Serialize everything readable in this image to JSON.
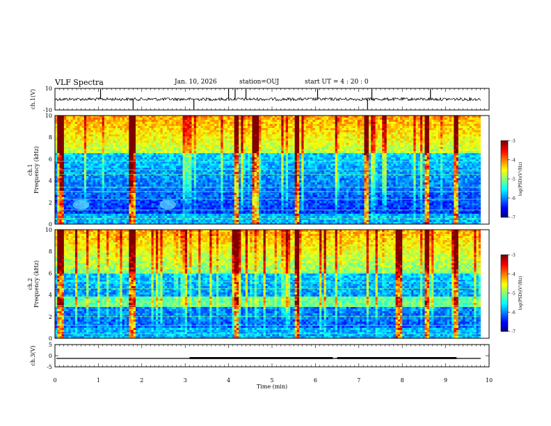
{
  "header": {
    "title": "VLF Spectra",
    "date": "Jan. 10, 2026",
    "station": "station=OUJ",
    "start": "start UT =  4 : 20 : 0"
  },
  "colors": {
    "colormap": [
      "#00007f",
      "#0000ff",
      "#007fff",
      "#00ffff",
      "#7fff7f",
      "#ffff00",
      "#ff7f00",
      "#ff0000",
      "#7f0000"
    ]
  },
  "chart_data": [
    {
      "type": "line",
      "name": "ch1-waveform",
      "ylabel": "ch.1(V)",
      "ylim": [
        -10,
        10
      ],
      "yticks": [
        "10",
        "-10"
      ],
      "xlim": [
        0,
        10
      ],
      "baseline": 0,
      "spikes_min": [
        1.05,
        1.8,
        3.2,
        4.0,
        4.15,
        4.4,
        6.05,
        7.2,
        7.3,
        8.65
      ]
    },
    {
      "type": "heatmap",
      "name": "ch1-spectrogram",
      "ylabel": "ch.1\nFrequency (kHz)",
      "ylim": [
        0,
        10
      ],
      "yticks": [
        "0",
        "2",
        "4",
        "6",
        "8",
        "10"
      ],
      "xlim": [
        0,
        10
      ],
      "colorbar": {
        "label": "log(PSD)(V²/Hz)",
        "range": [
          -7,
          -3
        ],
        "ticks": [
          "-3",
          "-4",
          "-5",
          "-6",
          "-7"
        ]
      },
      "strong_events_min": [
        0.1,
        1.75,
        4.15,
        4.6,
        5.55,
        7.15,
        8.55,
        9.2
      ],
      "blob_regions_min": [
        0.6,
        2.6
      ]
    },
    {
      "type": "heatmap",
      "name": "ch2-spectrogram",
      "ylabel": "ch.2\nFrequency (kHz)",
      "ylim": [
        0,
        10
      ],
      "yticks": [
        "0",
        "2",
        "4",
        "6",
        "8",
        "10"
      ],
      "xlim": [
        0,
        10
      ],
      "colorbar": {
        "label": "log(PSD)(V²/Hz)",
        "range": [
          -7,
          -3
        ],
        "ticks": [
          "-3",
          "-4",
          "-5",
          "-6",
          "-7"
        ]
      },
      "strong_events_min": [
        0.1,
        1.75,
        4.15,
        5.55,
        7.9,
        8.55,
        9.2
      ],
      "band_khz": 3.3
    },
    {
      "type": "line",
      "name": "ch3-waveform",
      "ylabel": "ch.3(V)",
      "ylim": [
        -5,
        5
      ],
      "yticks": [
        "5",
        "0",
        "-5"
      ],
      "xlim": [
        0,
        10
      ],
      "xlabel": "Time (min)",
      "xticks": [
        "0",
        "1",
        "2",
        "3",
        "4",
        "5",
        "6",
        "7",
        "8",
        "9",
        "10"
      ],
      "baseline": -1.2,
      "high_segments_min": [
        [
          3.1,
          6.4
        ],
        [
          6.5,
          9.25
        ]
      ],
      "high_value": -1.0
    }
  ]
}
